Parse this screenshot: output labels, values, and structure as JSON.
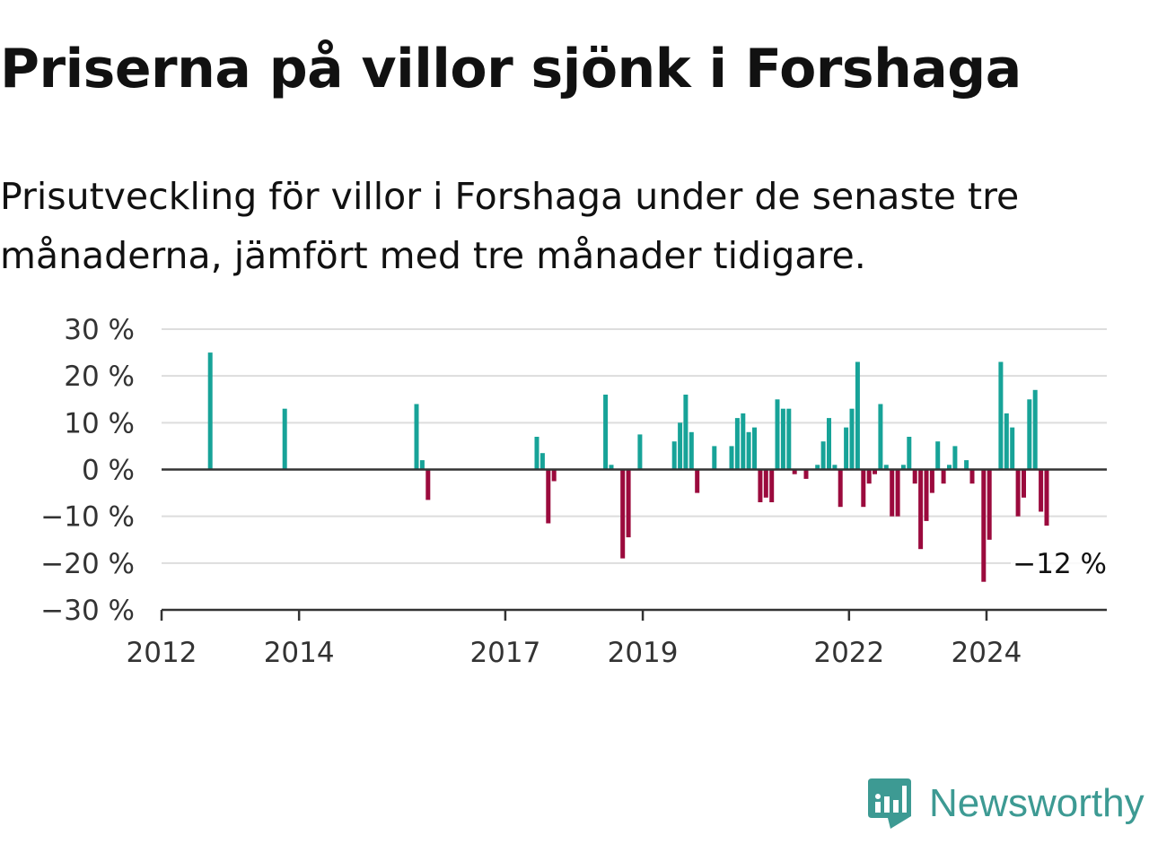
{
  "header": {
    "title": "Priserna på villor sjönk i Forshaga",
    "subtitle": "Prisutveckling för villor i Forshaga under de senaste tre månaderna, jämfört med tre månader tidigare."
  },
  "brand": {
    "name": "Newsworthy",
    "icon": "newsworthy-logo-icon",
    "color": "#3d9a93"
  },
  "colors": {
    "positive": "#17a398",
    "negative": "#9b0a3d",
    "grid": "#dddddd",
    "axis": "#333333"
  },
  "chart_data": {
    "type": "bar",
    "title": "Priserna på villor sjönk i Forshaga",
    "subtitle": "Prisutveckling för villor i Forshaga under de senaste tre månaderna, jämfört med tre månader tidigare.",
    "xlabel": "",
    "ylabel": "",
    "ylim": [
      -30,
      30
    ],
    "xlim": [
      "2012-01",
      "2025-09"
    ],
    "y_ticks": [
      "30 %",
      "20 %",
      "10 %",
      "0 %",
      "−10 %",
      "−20 %",
      "−30 %"
    ],
    "x_ticks": [
      "2012",
      "2014",
      "2017",
      "2019",
      "2022",
      "2024"
    ],
    "grid": true,
    "annotation": "−12 %",
    "series": [
      {
        "points": [
          [
            "2012-09",
            25
          ],
          [
            "2013-10",
            13
          ],
          [
            "2015-09",
            14
          ],
          [
            "2015-10",
            2
          ],
          [
            "2015-11",
            -6.5
          ],
          [
            "2017-06",
            7
          ],
          [
            "2017-07",
            3.5
          ],
          [
            "2017-08",
            -11.5
          ],
          [
            "2017-09",
            -2.5
          ],
          [
            "2018-06",
            16
          ],
          [
            "2018-07",
            1
          ],
          [
            "2018-09",
            -19
          ],
          [
            "2018-10",
            -14.5
          ],
          [
            "2018-12",
            7.5
          ],
          [
            "2019-06",
            6
          ],
          [
            "2019-07",
            10
          ],
          [
            "2019-08",
            16
          ],
          [
            "2019-09",
            8
          ],
          [
            "2019-10",
            -5
          ],
          [
            "2020-01",
            5
          ],
          [
            "2020-04",
            5
          ],
          [
            "2020-05",
            11
          ],
          [
            "2020-06",
            12
          ],
          [
            "2020-07",
            8
          ],
          [
            "2020-08",
            9
          ],
          [
            "2020-09",
            -7
          ],
          [
            "2020-10",
            -6
          ],
          [
            "2020-11",
            -7
          ],
          [
            "2020-12",
            15
          ],
          [
            "2021-01",
            13
          ],
          [
            "2021-02",
            13
          ],
          [
            "2021-03",
            -1
          ],
          [
            "2021-05",
            -2
          ],
          [
            "2021-07",
            1
          ],
          [
            "2021-08",
            6
          ],
          [
            "2021-09",
            11
          ],
          [
            "2021-10",
            1
          ],
          [
            "2021-11",
            -8
          ],
          [
            "2021-12",
            9
          ],
          [
            "2022-01",
            13
          ],
          [
            "2022-02",
            23
          ],
          [
            "2022-03",
            -8
          ],
          [
            "2022-04",
            -3
          ],
          [
            "2022-05",
            -1
          ],
          [
            "2022-06",
            14
          ],
          [
            "2022-07",
            1
          ],
          [
            "2022-08",
            -10
          ],
          [
            "2022-09",
            -10
          ],
          [
            "2022-10",
            1
          ],
          [
            "2022-11",
            7
          ],
          [
            "2022-12",
            -3
          ],
          [
            "2023-01",
            -17
          ],
          [
            "2023-02",
            -11
          ],
          [
            "2023-03",
            -5
          ],
          [
            "2023-04",
            6
          ],
          [
            "2023-05",
            -3
          ],
          [
            "2023-06",
            1
          ],
          [
            "2023-07",
            5
          ],
          [
            "2023-09",
            2
          ],
          [
            "2023-10",
            -3
          ],
          [
            "2023-12",
            -24
          ],
          [
            "2024-01",
            -15
          ],
          [
            "2024-03",
            23
          ],
          [
            "2024-04",
            12
          ],
          [
            "2024-05",
            9
          ],
          [
            "2024-06",
            -10
          ],
          [
            "2024-07",
            -6
          ],
          [
            "2024-08",
            15
          ],
          [
            "2024-09",
            17
          ],
          [
            "2024-10",
            -9
          ],
          [
            "2024-11",
            -12
          ]
        ]
      }
    ]
  }
}
